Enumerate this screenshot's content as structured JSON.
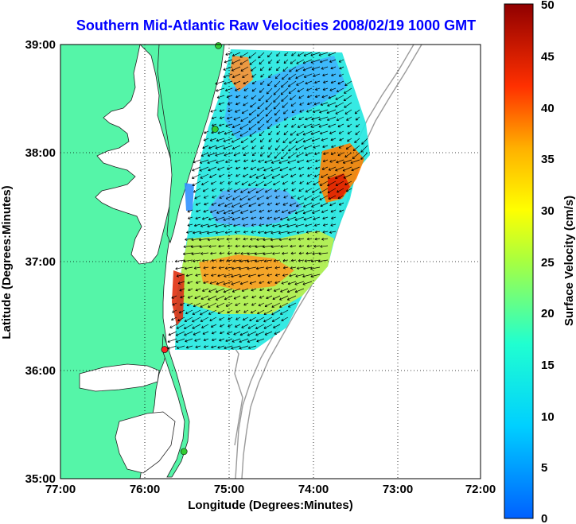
{
  "title": "Southern Mid-Atlantic Raw Velocities 2008/02/19 1000 GMT",
  "x_axis": {
    "label": "Longitude (Degrees:Minutes)",
    "ticks": [
      "77:00",
      "76:00",
      "75:00",
      "74:00",
      "73:00",
      "72:00"
    ]
  },
  "y_axis": {
    "label": "Latitude (Degrees:Minutes)",
    "ticks": [
      "39:00",
      "38:00",
      "37:00",
      "36:00",
      "35:00"
    ]
  },
  "colorbar": {
    "label": "Surface Velocity (cm/s)",
    "ticks": [
      "50",
      "45",
      "40",
      "35",
      "30",
      "25",
      "20",
      "15",
      "10",
      "5",
      "0"
    ],
    "min": 0,
    "max": 50
  },
  "colors": {
    "land": "#55f5a8",
    "water": "#ffffff",
    "title": "#0000ff",
    "grid": "#000000",
    "bathymetry": "#9a9a9a",
    "site_green": "#33cc33",
    "site_red": "#ff2222"
  },
  "map": {
    "lon_range": [
      -77,
      -72
    ],
    "lat_range": [
      35,
      39
    ],
    "grid": "dotted"
  },
  "sites": [
    {
      "lon": -75.12,
      "lat": 38.99,
      "color": "green"
    },
    {
      "lon": -75.16,
      "lat": 38.22,
      "color": "green"
    },
    {
      "lon": -75.76,
      "lat": 36.19,
      "color": "red"
    },
    {
      "lon": -75.53,
      "lat": 35.25,
      "color": "green"
    }
  ]
}
